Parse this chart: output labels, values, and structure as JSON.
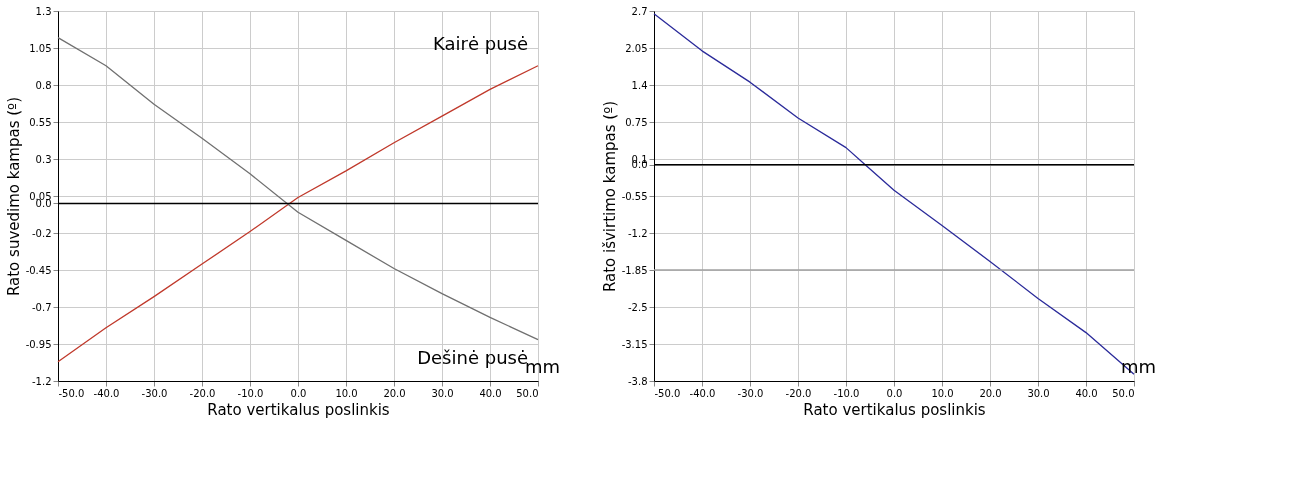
{
  "chart_data": [
    {
      "type": "line",
      "xlabel": "Rato vertikalus poslinkis",
      "ylabel": "Rato suvedimo kampas (º)",
      "x": [
        -50,
        -40,
        -30,
        -20,
        -10,
        0,
        10,
        20,
        30,
        40,
        50
      ],
      "series": [
        {
          "name": "Kairė pusė",
          "color": "#c0392b",
          "values": [
            -1.07,
            -0.84,
            -0.63,
            -0.41,
            -0.19,
            0.04,
            0.22,
            0.41,
            0.59,
            0.77,
            0.93
          ]
        },
        {
          "name": "Dešinė pusė",
          "color": "#707070",
          "values": [
            1.12,
            0.93,
            0.67,
            0.44,
            0.2,
            -0.06,
            -0.25,
            -0.44,
            -0.61,
            -0.77,
            -0.92
          ]
        }
      ],
      "xlim": [
        -50,
        50
      ],
      "ylim": [
        -1.2,
        1.3
      ],
      "xticks": [
        {
          "value": -50,
          "label": "-50.0"
        },
        {
          "value": -40,
          "label": "-40.0"
        },
        {
          "value": -30,
          "label": "-30.0"
        },
        {
          "value": -20,
          "label": "-20.0"
        },
        {
          "value": -10,
          "label": "-10.0"
        },
        {
          "value": 0,
          "label": "0.0"
        },
        {
          "value": 10,
          "label": "10.0"
        },
        {
          "value": 20,
          "label": "20.0"
        },
        {
          "value": 30,
          "label": "30.0"
        },
        {
          "value": 40,
          "label": "40.0"
        },
        {
          "value": 50,
          "label": "50.0"
        }
      ],
      "yticks": [
        -1.2,
        -0.95,
        -0.7,
        -0.45,
        -0.2,
        {
          "value": 0,
          "label": "0.0"
        },
        0.05,
        0.3,
        0.55,
        0.8,
        1.05,
        1.3
      ],
      "ref_lines": [
        {
          "axis": "y",
          "value": 0,
          "color": "#000000"
        }
      ],
      "annotations": [
        "mm"
      ],
      "grid": true,
      "legend": false
    },
    {
      "type": "line",
      "xlabel": "Rato vertikalus poslinkis",
      "ylabel": "Rato išvirtimo kampas (º)",
      "x": [
        -50,
        -40,
        -30,
        -20,
        -10,
        -6,
        0,
        10,
        20,
        30,
        40,
        50
      ],
      "series": [
        {
          "color": "#2a2a9a",
          "values": [
            2.65,
            2.0,
            1.45,
            0.82,
            0.3,
            0.0,
            -0.45,
            -1.07,
            -1.7,
            -2.35,
            -2.95,
            -3.68
          ]
        }
      ],
      "xlim": [
        -50,
        50
      ],
      "ylim": [
        -3.8,
        2.7
      ],
      "xticks": [
        {
          "value": -50,
          "label": "-50.0"
        },
        {
          "value": -40,
          "label": "-40.0"
        },
        {
          "value": -30,
          "label": "-30.0"
        },
        {
          "value": -20,
          "label": "-20.0"
        },
        {
          "value": -10,
          "label": "-10.0"
        },
        {
          "value": 0,
          "label": "0.0"
        },
        {
          "value": 10,
          "label": "10.0"
        },
        {
          "value": 20,
          "label": "20.0"
        },
        {
          "value": 30,
          "label": "30.0"
        },
        {
          "value": 40,
          "label": "40.0"
        },
        {
          "value": 50,
          "label": "50.0"
        }
      ],
      "yticks": [
        -3.8,
        -3.15,
        -2.5,
        -1.85,
        -1.2,
        -0.55,
        {
          "value": 0,
          "label": "0.0"
        },
        0.1,
        0.75,
        1.4,
        2.05,
        2.7
      ],
      "ref_lines": [
        {
          "axis": "y",
          "value": 0,
          "color": "#000000"
        },
        {
          "axis": "y",
          "value": -1.85,
          "color": "#a0a0a0"
        }
      ],
      "annotations": [
        "mm"
      ],
      "grid": true,
      "legend": false
    }
  ]
}
